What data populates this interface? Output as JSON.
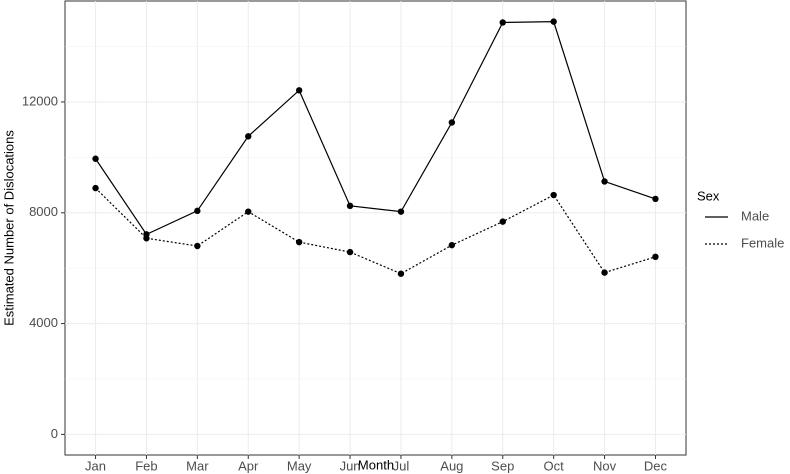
{
  "chart_data": {
    "type": "line",
    "x_label": "Month",
    "y_label": "Estimated Number of Dislocations",
    "categories": [
      "Jan",
      "Feb",
      "Mar",
      "Apr",
      "May",
      "Jun",
      "Jul",
      "Aug",
      "Sep",
      "Oct",
      "Nov",
      "Dec"
    ],
    "series": [
      {
        "name": "Male",
        "color": "#000000",
        "dash": "solid",
        "values": [
          9950,
          7220,
          8070,
          10760,
          12420,
          8250,
          8040,
          11260,
          14870,
          14900,
          9130,
          8500
        ]
      },
      {
        "name": "Female",
        "color": "#000000",
        "dash": "dotted",
        "values": [
          8890,
          7080,
          6800,
          8040,
          6940,
          6580,
          5800,
          6830,
          7680,
          8640,
          5840,
          6410
        ]
      }
    ],
    "ylim": [
      -745,
      15645
    ],
    "yticks": [
      0,
      4000,
      8000,
      12000
    ],
    "grid": true,
    "legend_title": "Sex",
    "legend_position": "right"
  }
}
